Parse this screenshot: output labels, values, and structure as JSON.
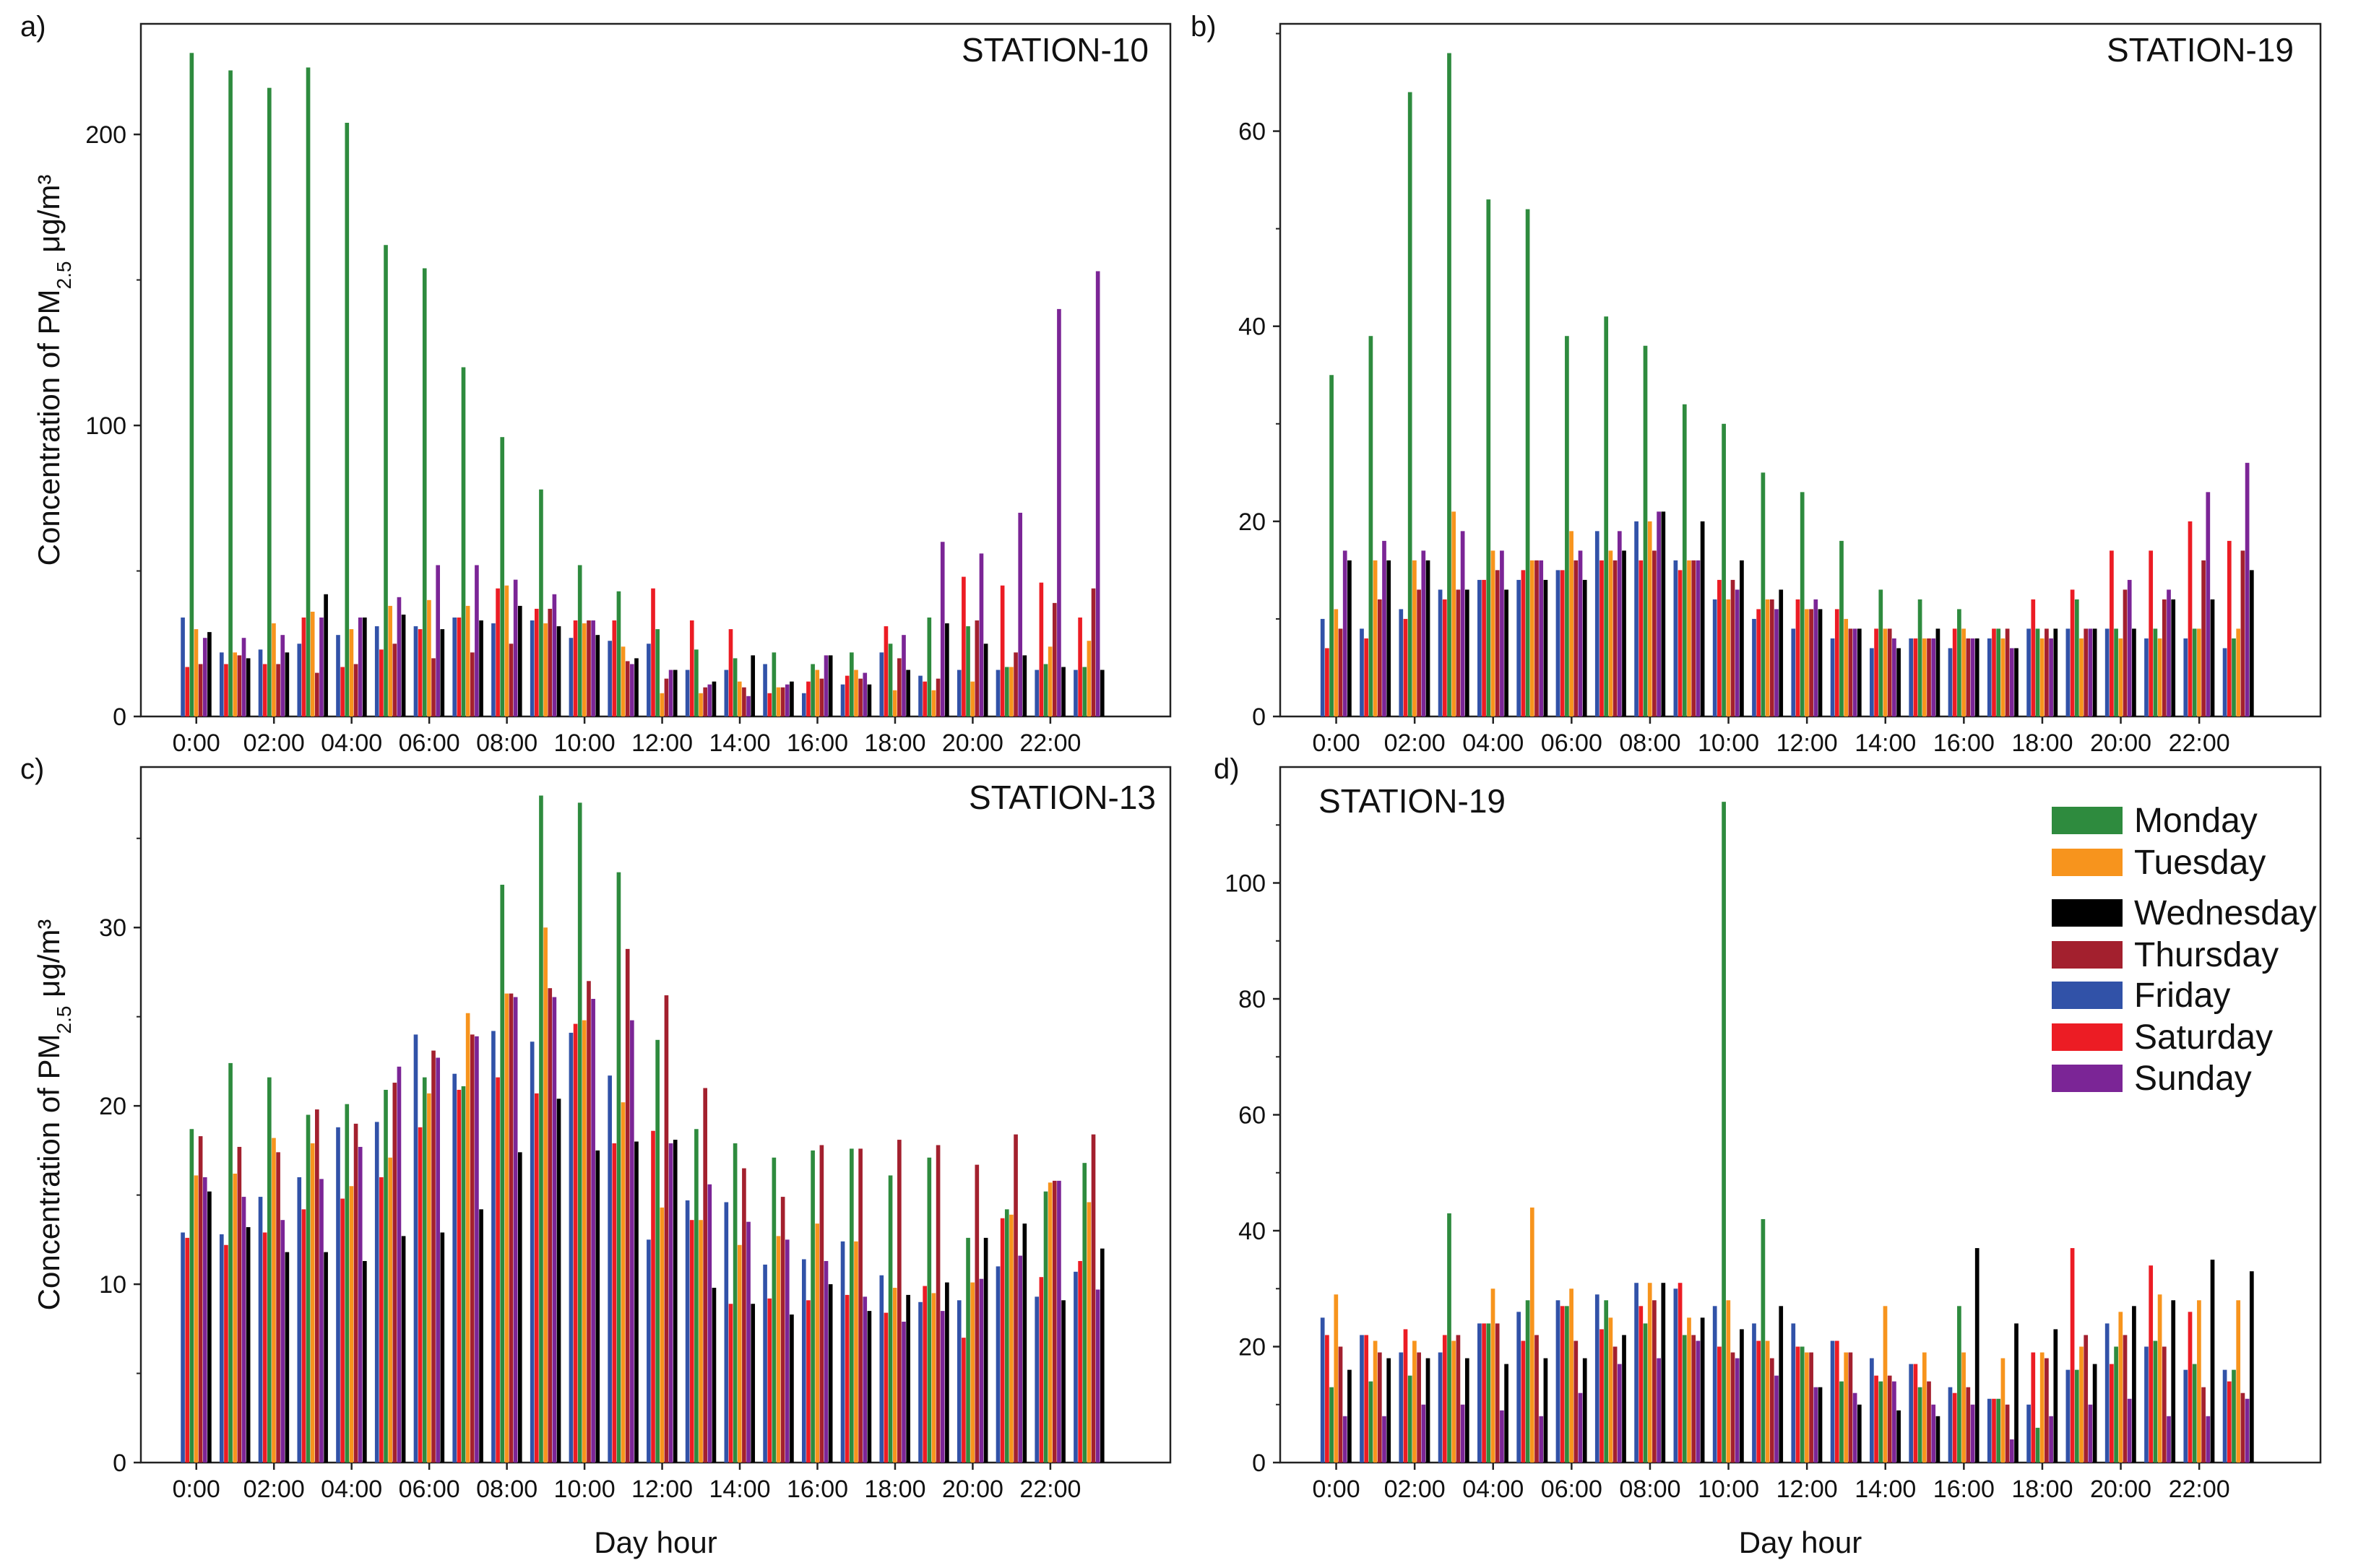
{
  "figure": {
    "xlabel": "Day hour",
    "ylabel_prefix": "Concentration of PM",
    "ylabel_sub": "2.5",
    "ylabel_unit": " μg/m³"
  },
  "chart_data": [
    {
      "type": "bar",
      "panel": "a)",
      "title": "STATION-10",
      "xlabel": "",
      "ylabel": "Concentration of PM2.5 μg/m³",
      "ylim": [
        0,
        238
      ],
      "yticks": [
        0,
        100,
        200
      ],
      "xtick_labels": [
        "0:00",
        "02:00",
        "04:00",
        "06:00",
        "08:00",
        "10:00",
        "12:00",
        "14:00",
        "16:00",
        "18:00",
        "20:00",
        "22:00"
      ],
      "categories": [
        "0:00",
        "1:00",
        "2:00",
        "3:00",
        "4:00",
        "5:00",
        "6:00",
        "7:00",
        "8:00",
        "9:00",
        "10:00",
        "11:00",
        "12:00",
        "13:00",
        "14:00",
        "15:00",
        "16:00",
        "17:00",
        "18:00",
        "19:00",
        "20:00",
        "21:00",
        "22:00",
        "23:00"
      ],
      "grid": false,
      "series": [
        {
          "name": "Monday",
          "values": [
            228,
            222,
            216,
            223,
            204,
            162,
            154,
            120,
            96,
            78,
            52,
            43,
            30,
            23,
            20,
            22,
            18,
            22,
            25,
            34,
            31,
            17,
            18,
            17
          ]
        },
        {
          "name": "Tuesday",
          "values": [
            30,
            22,
            32,
            36,
            30,
            38,
            40,
            38,
            45,
            32,
            32,
            24,
            8,
            8,
            12,
            10,
            16,
            16,
            9,
            9,
            12,
            17,
            24,
            26
          ]
        },
        {
          "name": "Wednesday",
          "values": [
            29,
            20,
            22,
            42,
            34,
            35,
            30,
            33,
            38,
            31,
            28,
            20,
            16,
            12,
            21,
            12,
            21,
            11,
            16,
            32,
            25,
            21,
            17,
            16
          ]
        },
        {
          "name": "Thursday",
          "values": [
            18,
            21,
            18,
            15,
            18,
            25,
            20,
            22,
            25,
            37,
            33,
            19,
            13,
            10,
            10,
            10,
            13,
            13,
            20,
            13,
            33,
            22,
            39,
            44
          ]
        },
        {
          "name": "Friday",
          "values": [
            34,
            22,
            23,
            25,
            28,
            31,
            31,
            34,
            32,
            33,
            27,
            26,
            25,
            16,
            16,
            18,
            8,
            11,
            22,
            14,
            16,
            16,
            16,
            16
          ]
        },
        {
          "name": "Saturday",
          "values": [
            17,
            18,
            18,
            34,
            17,
            23,
            30,
            34,
            44,
            37,
            33,
            33,
            44,
            33,
            30,
            8,
            12,
            14,
            31,
            12,
            48,
            45,
            46,
            34
          ]
        },
        {
          "name": "Sunday",
          "values": [
            27,
            27,
            28,
            34,
            34,
            41,
            52,
            52,
            47,
            42,
            33,
            18,
            16,
            11,
            7,
            11,
            21,
            15,
            28,
            60,
            56,
            70,
            140,
            153
          ]
        }
      ]
    },
    {
      "type": "bar",
      "panel": "b)",
      "title": "STATION-19",
      "xlabel": "",
      "ylabel": "",
      "ylim": [
        0,
        71
      ],
      "yticks": [
        0,
        20,
        40,
        60
      ],
      "xtick_labels": [
        "0:00",
        "02:00",
        "04:00",
        "06:00",
        "08:00",
        "10:00",
        "12:00",
        "14:00",
        "16:00",
        "18:00",
        "20:00",
        "22:00"
      ],
      "categories": [
        "0:00",
        "1:00",
        "2:00",
        "3:00",
        "4:00",
        "5:00",
        "6:00",
        "7:00",
        "8:00",
        "9:00",
        "10:00",
        "11:00",
        "12:00",
        "13:00",
        "14:00",
        "15:00",
        "16:00",
        "17:00",
        "18:00",
        "19:00",
        "20:00",
        "21:00",
        "22:00",
        "23:00"
      ],
      "grid": false,
      "series": [
        {
          "name": "Monday",
          "values": [
            35,
            39,
            64,
            68,
            53,
            52,
            39,
            41,
            38,
            32,
            30,
            25,
            23,
            18,
            13,
            12,
            11,
            9,
            9,
            12,
            9,
            9,
            9,
            8
          ]
        },
        {
          "name": "Tuesday",
          "values": [
            11,
            16,
            16,
            21,
            17,
            16,
            19,
            17,
            20,
            16,
            12,
            12,
            11,
            10,
            9,
            8,
            9,
            8,
            8,
            8,
            8,
            8,
            9,
            9
          ]
        },
        {
          "name": "Wednesday",
          "values": [
            16,
            16,
            16,
            13,
            13,
            14,
            14,
            17,
            21,
            20,
            16,
            13,
            11,
            9,
            7,
            9,
            8,
            7,
            9,
            9,
            9,
            12,
            12,
            15
          ]
        },
        {
          "name": "Thursday",
          "values": [
            9,
            12,
            13,
            13,
            15,
            16,
            16,
            16,
            17,
            16,
            14,
            12,
            11,
            9,
            9,
            8,
            8,
            9,
            9,
            9,
            13,
            12,
            16,
            17
          ]
        },
        {
          "name": "Friday",
          "values": [
            10,
            9,
            11,
            13,
            14,
            14,
            15,
            19,
            20,
            16,
            12,
            10,
            9,
            8,
            7,
            8,
            7,
            8,
            9,
            9,
            9,
            8,
            8,
            7
          ]
        },
        {
          "name": "Saturday",
          "values": [
            7,
            8,
            10,
            12,
            14,
            15,
            15,
            16,
            16,
            15,
            14,
            11,
            12,
            11,
            9,
            8,
            9,
            9,
            12,
            13,
            17,
            17,
            20,
            18
          ]
        },
        {
          "name": "Sunday",
          "values": [
            17,
            18,
            17,
            19,
            17,
            16,
            17,
            19,
            21,
            16,
            13,
            11,
            12,
            9,
            8,
            8,
            8,
            7,
            8,
            9,
            14,
            13,
            23,
            26
          ]
        }
      ]
    },
    {
      "type": "bar",
      "panel": "c)",
      "title": "STATION-13",
      "xlabel": "Day hour",
      "ylabel": "Concentration of PM2.5 μg/m³",
      "ylim": [
        0,
        39
      ],
      "yticks": [
        0,
        10,
        20,
        30
      ],
      "xtick_labels": [
        "0:00",
        "02:00",
        "04:00",
        "06:00",
        "08:00",
        "10:00",
        "12:00",
        "14:00",
        "16:00",
        "18:00",
        "20:00",
        "22:00"
      ],
      "categories": [
        "0:00",
        "1:00",
        "2:00",
        "3:00",
        "4:00",
        "5:00",
        "6:00",
        "7:00",
        "8:00",
        "9:00",
        "10:00",
        "11:00",
        "12:00",
        "13:00",
        "14:00",
        "15:00",
        "16:00",
        "17:00",
        "18:00",
        "19:00",
        "20:00",
        "21:00",
        "22:00",
        "23:00"
      ],
      "grid": false,
      "series": [
        {
          "name": "Monday",
          "values": [
            18.7,
            22.4,
            21.6,
            19.5,
            20.1,
            20.9,
            21.6,
            21.1,
            32.4,
            37.4,
            37.0,
            33.1,
            23.7,
            18.7,
            17.9,
            17.1,
            17.5,
            17.6,
            16.1,
            17.1,
            12.6,
            14.2,
            15.2,
            16.8
          ]
        },
        {
          "name": "Tuesday",
          "values": [
            16.1,
            16.2,
            18.2,
            17.9,
            15.5,
            17.1,
            20.7,
            25.2,
            26.3,
            30.0,
            24.8,
            20.2,
            14.3,
            13.6,
            12.2,
            12.7,
            13.4,
            12.4,
            9.8,
            9.5,
            10.1,
            13.9,
            15.7,
            14.6
          ]
        },
        {
          "name": "Wednesday",
          "values": [
            15.2,
            13.2,
            11.8,
            11.8,
            11.3,
            12.7,
            12.9,
            14.2,
            17.4,
            20.4,
            17.5,
            18.0,
            18.1,
            9.8,
            8.9,
            8.3,
            10.0,
            8.5,
            9.4,
            10.1,
            12.6,
            13.4,
            9.1,
            12.0
          ]
        },
        {
          "name": "Thursday",
          "values": [
            18.3,
            17.7,
            17.4,
            19.8,
            19.0,
            21.3,
            23.1,
            24.0,
            26.3,
            26.6,
            27.0,
            28.8,
            26.2,
            21.0,
            16.5,
            14.9,
            17.8,
            17.6,
            18.1,
            17.8,
            16.7,
            18.4,
            15.8,
            18.4
          ]
        },
        {
          "name": "Friday",
          "values": [
            12.9,
            12.8,
            14.9,
            16.0,
            18.8,
            19.1,
            24.0,
            21.8,
            24.2,
            23.6,
            24.1,
            21.7,
            12.5,
            14.7,
            14.6,
            11.1,
            11.4,
            12.4,
            10.5,
            9.0,
            9.1,
            11.0,
            9.3,
            10.7
          ]
        },
        {
          "name": "Saturday",
          "values": [
            12.6,
            12.2,
            12.9,
            14.2,
            14.8,
            16.0,
            18.8,
            20.9,
            21.6,
            20.7,
            24.6,
            17.9,
            18.6,
            13.6,
            8.9,
            9.2,
            9.1,
            9.4,
            8.4,
            9.9,
            7.0,
            13.7,
            10.4,
            11.3
          ]
        },
        {
          "name": "Sunday",
          "values": [
            16.0,
            14.9,
            13.6,
            15.9,
            17.7,
            22.2,
            22.7,
            23.9,
            26.1,
            26.1,
            26.0,
            24.8,
            17.9,
            15.6,
            13.5,
            12.5,
            11.3,
            9.3,
            7.9,
            8.5,
            10.3,
            11.6,
            15.8,
            9.7
          ]
        }
      ]
    },
    {
      "type": "bar",
      "panel": "d)",
      "title": "STATION-19",
      "xlabel": "Day hour",
      "ylabel": "",
      "ylim": [
        0,
        120
      ],
      "yticks": [
        0,
        20,
        40,
        60,
        80,
        100
      ],
      "xtick_labels": [
        "0:00",
        "02:00",
        "04:00",
        "06:00",
        "08:00",
        "10:00",
        "12:00",
        "14:00",
        "16:00",
        "18:00",
        "20:00",
        "22:00"
      ],
      "categories": [
        "0:00",
        "1:00",
        "2:00",
        "3:00",
        "4:00",
        "5:00",
        "6:00",
        "7:00",
        "8:00",
        "9:00",
        "10:00",
        "11:00",
        "12:00",
        "13:00",
        "14:00",
        "15:00",
        "16:00",
        "17:00",
        "18:00",
        "19:00",
        "20:00",
        "21:00",
        "22:00",
        "23:00"
      ],
      "grid": false,
      "legend": "top-right",
      "series": [
        {
          "name": "Monday",
          "values": [
            13,
            14,
            15,
            43,
            24,
            28,
            27,
            28,
            24,
            22,
            114,
            42,
            20,
            14,
            14,
            13,
            27,
            11,
            6,
            16,
            20,
            21,
            17,
            16
          ]
        },
        {
          "name": "Tuesday",
          "values": [
            29,
            21,
            21,
            21,
            30,
            44,
            30,
            25,
            31,
            25,
            28,
            21,
            19,
            19,
            27,
            19,
            19,
            18,
            19,
            20,
            26,
            29,
            28,
            28
          ]
        },
        {
          "name": "Wednesday",
          "values": [
            16,
            18,
            18,
            18,
            17,
            18,
            18,
            22,
            31,
            25,
            23,
            27,
            13,
            10,
            9,
            8,
            37,
            24,
            23,
            17,
            27,
            28,
            35,
            33
          ]
        },
        {
          "name": "Thursday",
          "values": [
            20,
            19,
            19,
            22,
            24,
            22,
            21,
            20,
            28,
            22,
            19,
            18,
            19,
            19,
            15,
            14,
            13,
            10,
            18,
            22,
            22,
            20,
            13,
            12
          ]
        },
        {
          "name": "Friday",
          "values": [
            25,
            22,
            19,
            19,
            24,
            26,
            28,
            29,
            31,
            30,
            27,
            24,
            24,
            21,
            18,
            17,
            13,
            11,
            10,
            16,
            24,
            20,
            16,
            16
          ]
        },
        {
          "name": "Saturday",
          "values": [
            22,
            22,
            23,
            22,
            24,
            21,
            27,
            23,
            27,
            31,
            20,
            21,
            20,
            21,
            15,
            17,
            12,
            11,
            19,
            37,
            17,
            34,
            26,
            14
          ]
        },
        {
          "name": "Sunday",
          "values": [
            8,
            8,
            10,
            10,
            9,
            8,
            12,
            17,
            18,
            21,
            18,
            15,
            13,
            12,
            14,
            10,
            10,
            4,
            8,
            10,
            11,
            8,
            8,
            11
          ]
        }
      ]
    }
  ],
  "legend": {
    "items": [
      {
        "label": "Monday",
        "color": "#2e8b3e"
      },
      {
        "label": "Tuesday",
        "color": "#f7941d"
      },
      {
        "label": "Wednesday",
        "color": "#000000"
      },
      {
        "label": "Thursday",
        "color": "#a3202e"
      },
      {
        "label": "Friday",
        "color": "#3152a8"
      },
      {
        "label": "Saturday",
        "color": "#ec1c24"
      },
      {
        "label": "Sunday",
        "color": "#7b2596"
      }
    ]
  },
  "colors": {
    "Monday": "#2e8b3e",
    "Tuesday": "#f7941d",
    "Wednesday": "#000000",
    "Thursday": "#a3202e",
    "Friday": "#3152a8",
    "Saturday": "#ec1c24",
    "Sunday": "#7b2596"
  }
}
